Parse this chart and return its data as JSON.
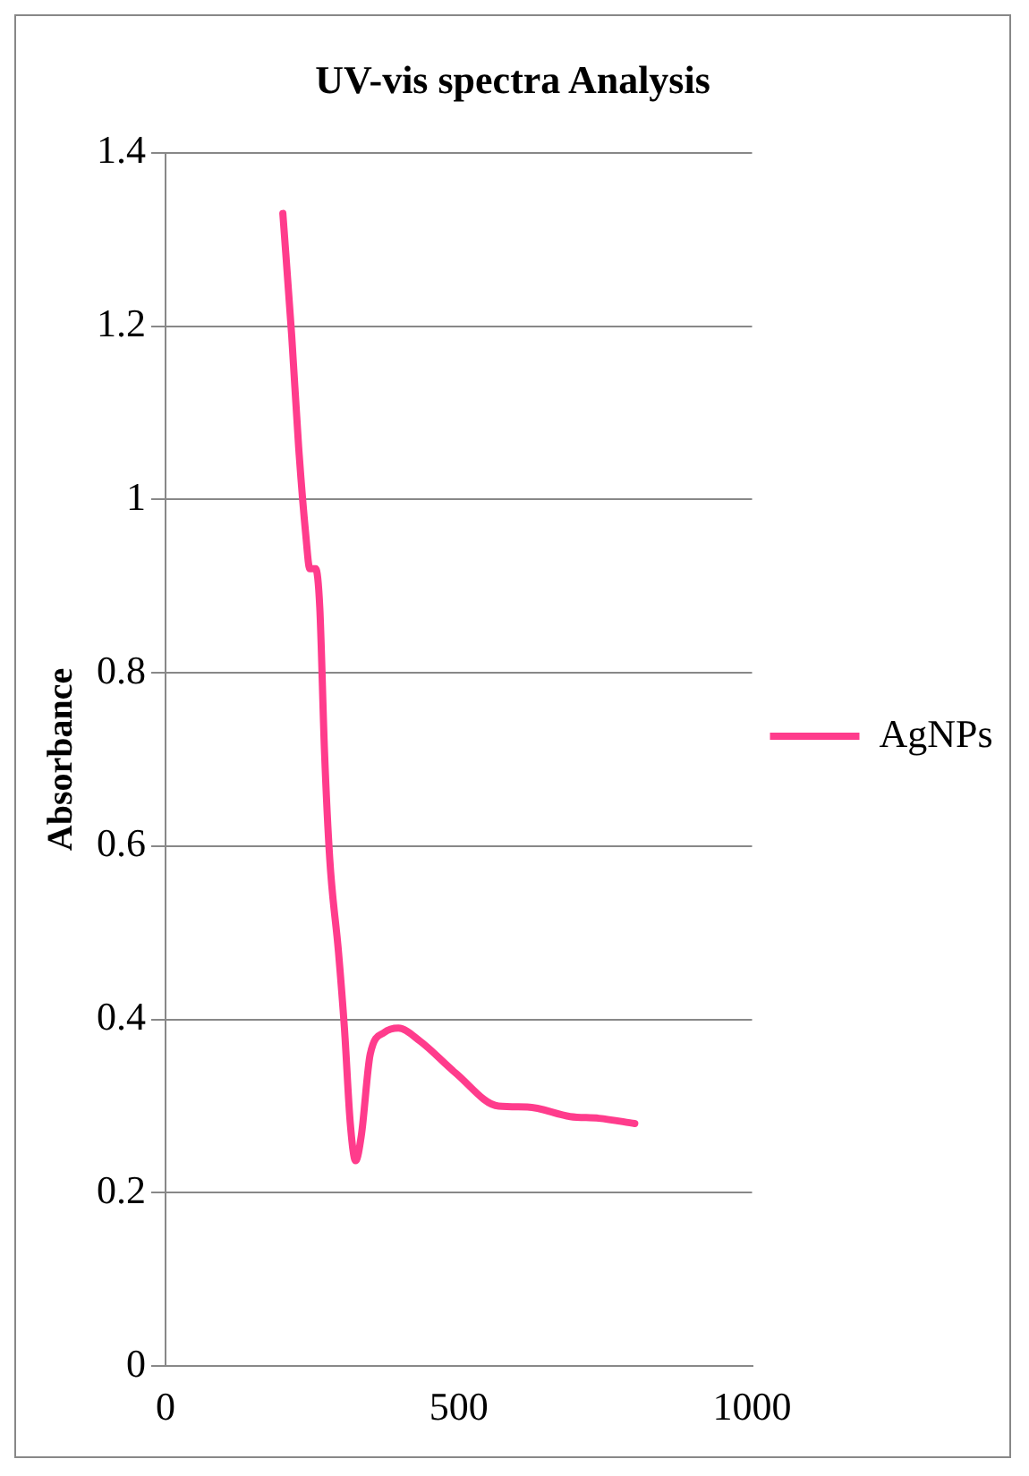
{
  "chart_data": {
    "type": "line",
    "title": "UV-vis spectra Analysis",
    "ylabel": "Absorbance",
    "xlim": [
      0,
      1000
    ],
    "xticks": [
      0,
      500,
      1000
    ],
    "ylim": [
      0,
      1.4
    ],
    "yticks": [
      0,
      0.2,
      0.4,
      0.6,
      0.8,
      1,
      1.2,
      1.4
    ],
    "grid": "y",
    "legend": "right",
    "marker": "none",
    "line_style": "solid",
    "series": [
      {
        "name": "AgNPs",
        "color": "#ff3c8c",
        "x": [
          200,
          215,
          227,
          239,
          246,
          256,
          263,
          271,
          280,
          295,
          305,
          315,
          324,
          334,
          349,
          373,
          397,
          434,
          495,
          568,
          617,
          690,
          739,
          800
        ],
        "values": [
          1.33,
          1.19,
          1.06,
          0.96,
          0.92,
          0.92,
          0.875,
          0.71,
          0.585,
          0.477,
          0.39,
          0.28,
          0.237,
          0.267,
          0.36,
          0.385,
          0.39,
          0.375,
          0.338,
          0.3,
          0.299,
          0.288,
          0.286,
          0.28
        ]
      }
    ]
  }
}
